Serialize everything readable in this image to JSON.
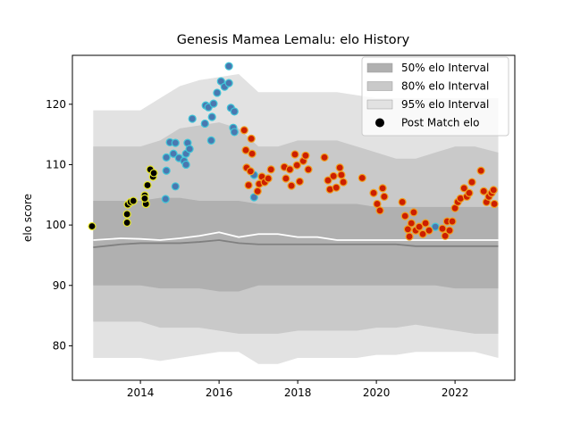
{
  "chart_data": {
    "type": "scatter",
    "title": "Genesis Mamea Lemalu: elo History",
    "ylabel": "elo score",
    "xlim": [
      2012.27,
      2023.52
    ],
    "ylim": [
      74.3,
      128.1
    ],
    "xticks": [
      2014,
      2016,
      2018,
      2020,
      2022
    ],
    "yticks": [
      80,
      90,
      100,
      110,
      120
    ],
    "legend": "upper right",
    "band_x": [
      2012.8,
      2013.5,
      2014,
      2014.5,
      2015,
      2015.5,
      2016,
      2016.5,
      2017,
      2017.5,
      2018,
      2018.5,
      2019,
      2019.5,
      2020,
      2020.5,
      2021,
      2021.5,
      2022,
      2022.5,
      2023.1
    ],
    "intervals": [
      {
        "name": "50% elo Interval",
        "color": "#b0b0b0",
        "upper": [
          104,
          104,
          104,
          104.5,
          104.5,
          104,
          104,
          104,
          103.5,
          103.5,
          103.5,
          103.5,
          103.5,
          103.5,
          103,
          103,
          103,
          103,
          103,
          103,
          103
        ],
        "lower": [
          90,
          90,
          90,
          89.5,
          89.5,
          89.5,
          89,
          89,
          90,
          90,
          90,
          90,
          90,
          90,
          90,
          90,
          90,
          90,
          89.5,
          89.5,
          89.5
        ]
      },
      {
        "name": "80% elo Interval",
        "color": "#c9c9c9",
        "upper": [
          113,
          113,
          113,
          114,
          116,
          116.5,
          117,
          116,
          113,
          113,
          114,
          114,
          114,
          113,
          112,
          111,
          111,
          112,
          113,
          113,
          112
        ],
        "lower": [
          84,
          84,
          84,
          83,
          83,
          83,
          82.5,
          82,
          82,
          82,
          82.5,
          82.5,
          82.5,
          82.5,
          83,
          83,
          83.5,
          83,
          82.5,
          82,
          82
        ]
      },
      {
        "name": "95% elo Interval",
        "color": "#e2e2e2",
        "upper": [
          119,
          119,
          119,
          121,
          123,
          124,
          124.5,
          125,
          122,
          122,
          122,
          122,
          122,
          121.5,
          121,
          121,
          121,
          121,
          121,
          121,
          121
        ],
        "lower": [
          78,
          78,
          78,
          77.5,
          78,
          78.5,
          79,
          79,
          77,
          77,
          78,
          78,
          78,
          78,
          78.5,
          78.5,
          79,
          79,
          79,
          79,
          78
        ]
      }
    ],
    "lines": [
      {
        "color": "#808080",
        "values": [
          96.3,
          96.8,
          97,
          97,
          97,
          97.2,
          97.5,
          97,
          96.8,
          96.8,
          96.8,
          96.8,
          96.8,
          96.8,
          96.8,
          96.8,
          96.5,
          96.5,
          96.5,
          96.5,
          96.5
        ]
      },
      {
        "color": "#ffffff",
        "values": [
          97.5,
          97.8,
          97.7,
          97.5,
          97.8,
          98.2,
          98.8,
          98,
          98.5,
          98.5,
          98,
          98,
          97.5,
          97.5,
          97.5,
          97.5,
          97.5,
          97.5,
          97.5,
          97.5,
          97.5
        ]
      }
    ],
    "points_name": "Post Match elo",
    "points_legend_color": "#000000",
    "point_groups": [
      {
        "fill": "#000000",
        "edge": "#e8e82a",
        "x": [
          2012.77,
          2013.66,
          2013.66,
          2013.68,
          2013.75,
          2013.82,
          2014.11,
          2014.14,
          2014.18,
          2014.25,
          2014.32,
          2014.34,
          2014.11
        ],
        "values": [
          99.8,
          100.4,
          101.8,
          103.4,
          103.8,
          104.0,
          104.9,
          103.5,
          106.6,
          109.2,
          108.0,
          108.6,
          104.4
        ]
      },
      {
        "fill": "#4a78b0",
        "edge": "#3fc6d8",
        "x": [
          2014.64,
          2014.66,
          2014.66,
          2014.75,
          2014.89,
          2014.89,
          2014.84,
          2014.98,
          2015.11,
          2015.16,
          2015.2,
          2015.25,
          2015.16,
          2015.32,
          2015.64,
          2015.66,
          2015.73,
          2015.8,
          2015.82,
          2015.86,
          2015.95,
          2016.05,
          2016.14,
          2016.25,
          2016.25,
          2016.3,
          2016.39,
          2016.36,
          2016.39,
          2016.89,
          2016.89,
          2021.5
        ],
        "values": [
          104.3,
          109,
          111.2,
          113.7,
          113.6,
          106.4,
          111.8,
          111.1,
          110.6,
          111.8,
          113.6,
          112.6,
          110.0,
          117.6,
          116.8,
          119.8,
          119.5,
          114.0,
          117.9,
          120.1,
          121.9,
          123.8,
          122.9,
          126.3,
          123.5,
          119.4,
          118.8,
          116.1,
          115.4,
          108.3,
          104.6,
          99.7
        ]
      },
      {
        "fill": "#cc1f00",
        "edge": "#f0a020",
        "x": [
          2016.64,
          2016.68,
          2016.7,
          2016.75,
          2016.8,
          2016.82,
          2016.84,
          2016.98,
          2017.02,
          2017.09,
          2017.16,
          2017.25,
          2017.32,
          2017.66,
          2017.7,
          2017.8,
          2017.84,
          2017.93,
          2017.98,
          2018.05,
          2018.14,
          2018.2,
          2018.27,
          2018.68,
          2018.77,
          2018.82,
          2018.91,
          2018.98,
          2019.07,
          2019.11,
          2019.16,
          2019.64,
          2019.93,
          2020.02,
          2020.09,
          2020.16,
          2020.2,
          2020.66,
          2020.73,
          2020.8,
          2020.84,
          2020.89,
          2020.95,
          2021.0,
          2021.09,
          2021.18,
          2021.25,
          2021.34,
          2021.68,
          2021.75,
          2021.8,
          2021.86,
          2021.93,
          2022.0,
          2022.07,
          2022.14,
          2022.23,
          2022.3,
          2022.36,
          2022.43,
          2022.66,
          2022.73,
          2022.8,
          2022.86,
          2022.93,
          2022.98,
          2023.0
        ],
        "values": [
          115.7,
          112.4,
          109.5,
          106.6,
          108.9,
          114.3,
          111.8,
          105.6,
          106.8,
          108,
          107.1,
          107.7,
          109.2,
          109.6,
          107.7,
          109.2,
          106.5,
          111.7,
          109.9,
          107.2,
          110.6,
          111.5,
          109.2,
          111.2,
          107.4,
          105.9,
          108.1,
          106.2,
          109.5,
          108.3,
          107.1,
          107.8,
          105.3,
          103.5,
          102.4,
          106.1,
          104.7,
          103.8,
          101.5,
          99.3,
          98.1,
          100.3,
          102.1,
          99.1,
          99.7,
          98.5,
          100.3,
          99.1,
          99.4,
          98.2,
          100.6,
          99.1,
          100.6,
          102.8,
          103.8,
          104.4,
          106.1,
          104.7,
          105.3,
          107.1,
          109.0,
          105.6,
          103.8,
          104.7,
          105.3,
          105.8,
          103.5
        ]
      }
    ]
  }
}
